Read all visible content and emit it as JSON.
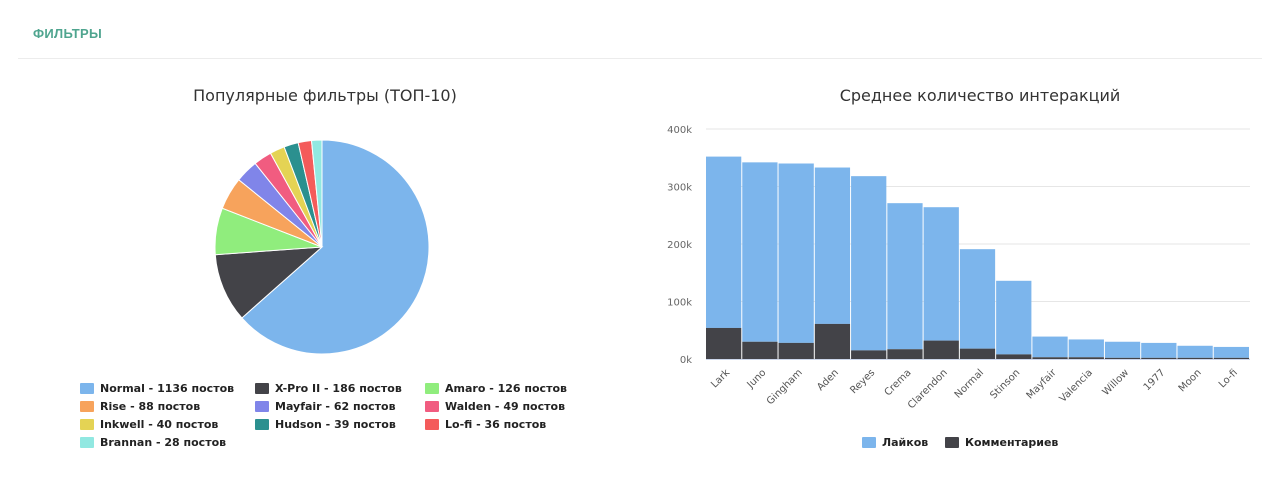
{
  "section": {
    "title": "ФИЛЬТРЫ"
  },
  "chart_data": [
    {
      "type": "pie",
      "title": "Популярные фильтры (ТОП-10)",
      "legend_position": "bottom",
      "slices": [
        {
          "label": "Normal - 1136 постов",
          "name": "Normal",
          "value": 1136,
          "color": "#7cb5ec"
        },
        {
          "label": "X-Pro II - 186 постов",
          "name": "X-Pro II",
          "value": 186,
          "color": "#434348"
        },
        {
          "label": "Amaro - 126 постов",
          "name": "Amaro",
          "value": 126,
          "color": "#90ed7d"
        },
        {
          "label": "Rise - 88 постов",
          "name": "Rise",
          "value": 88,
          "color": "#f7a35c"
        },
        {
          "label": "Mayfair - 62 постов",
          "name": "Mayfair",
          "value": 62,
          "color": "#8085e9"
        },
        {
          "label": "Walden - 49 постов",
          "name": "Walden",
          "value": 49,
          "color": "#f15c80"
        },
        {
          "label": "Inkwell - 40 постов",
          "name": "Inkwell",
          "value": 40,
          "color": "#e4d354"
        },
        {
          "label": "Hudson - 39 постов",
          "name": "Hudson",
          "value": 39,
          "color": "#2b908f"
        },
        {
          "label": "Lo-fi - 36 постов",
          "name": "Lo-fi",
          "value": 36,
          "color": "#f45b5b"
        },
        {
          "label": "Brannan - 28 постов",
          "name": "Brannan",
          "value": 28,
          "color": "#91e8e1"
        }
      ]
    },
    {
      "type": "bar",
      "stacked": true,
      "title": "Среднее количество интеракций",
      "categories": [
        "Lark",
        "Juno",
        "Gingham",
        "Aden",
        "Reyes",
        "Crema",
        "Clarendon",
        "Normal",
        "Stinson",
        "Mayfair",
        "Valencia",
        "Willow",
        "1977",
        "Moon",
        "Lo-fi"
      ],
      "series": [
        {
          "name": "Лайков",
          "color": "#7cb5ec",
          "values": [
            298000,
            312000,
            312000,
            272000,
            303000,
            254000,
            232000,
            173000,
            128000,
            36000,
            31000,
            28000,
            26000,
            21000,
            19000
          ]
        },
        {
          "name": "Комментариев",
          "color": "#434348",
          "values": [
            54000,
            30000,
            28000,
            61000,
            15000,
            17000,
            32000,
            18000,
            8000,
            3000,
            3000,
            2000,
            2000,
            2000,
            2000
          ]
        }
      ],
      "ylim": [
        0,
        400000
      ],
      "yticks": [
        "0k",
        "100k",
        "200k",
        "300k",
        "400k"
      ],
      "grid": true,
      "legend_position": "bottom"
    }
  ]
}
